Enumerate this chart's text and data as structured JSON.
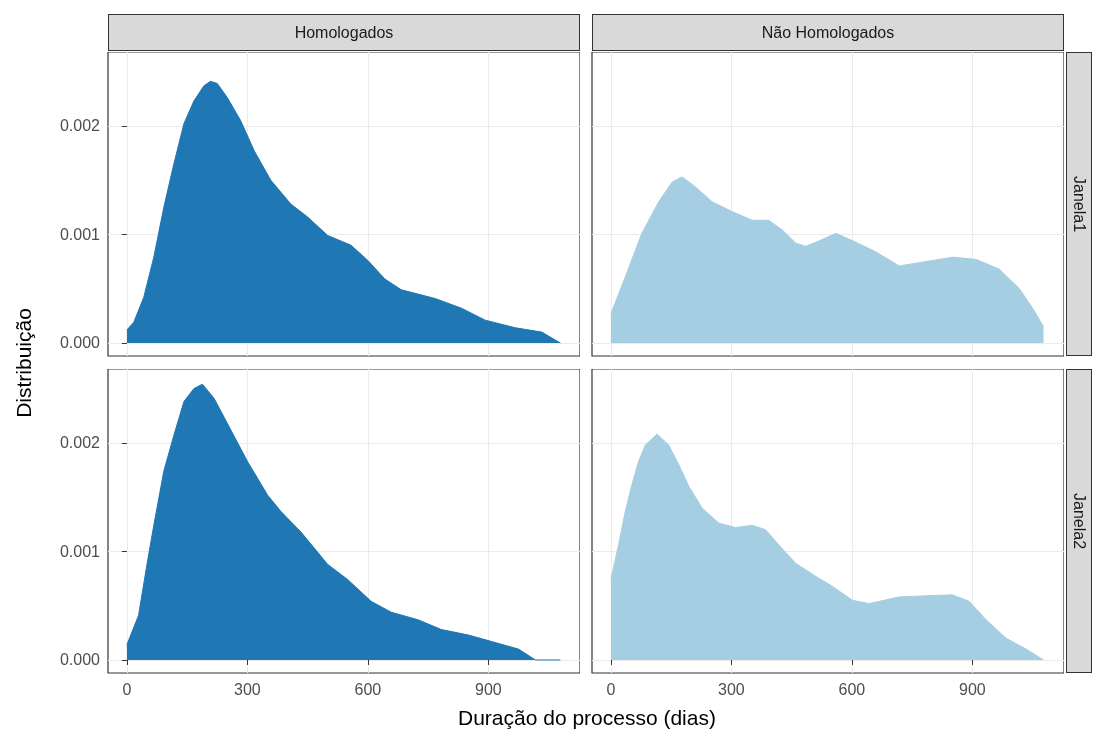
{
  "chart_data": [
    {
      "type": "area",
      "title": "Homologados",
      "ylabel": "Distribuição",
      "xlim": [
        -47,
        1128
      ],
      "xticks": [
        0,
        300,
        600,
        900
      ],
      "ylim": [
        -0.00012,
        0.00268
      ],
      "yticks": [
        {
          "value": 0,
          "label": "0.000"
        },
        {
          "value": 0.001,
          "label": "0.001"
        },
        {
          "value": 0.002,
          "label": "0.002"
        }
      ],
      "grid": true,
      "tick_labels": "y",
      "series": [
        {
          "color": "#1f77b4",
          "x": [
            0,
            17,
            42,
            67,
            92,
            117,
            142,
            167,
            192,
            208,
            225,
            250,
            283,
            317,
            358,
            408,
            450,
            500,
            558,
            600,
            642,
            683,
            767,
            833,
            892,
            967,
            1033,
            1079
          ],
          "values": [
            0.00012,
            0.00019,
            0.00042,
            0.00079,
            0.00125,
            0.00165,
            0.00202,
            0.00223,
            0.00237,
            0.00241,
            0.00239,
            0.00226,
            0.00205,
            0.00177,
            0.0015,
            0.00128,
            0.00116,
            0.00099,
            0.0009,
            0.00076,
            0.00059,
            0.00049,
            0.00041,
            0.00032,
            0.00021,
            0.00014,
            0.0001,
            0.0
          ]
        }
      ]
    },
    {
      "type": "area",
      "title": "Não Homologados",
      "y2label": "Janela1",
      "xlim": [
        -47,
        1128
      ],
      "xticks": [
        0,
        300,
        600,
        900
      ],
      "ylim": [
        -0.00012,
        0.00268
      ],
      "yticks": [
        0,
        0.001,
        0.002
      ],
      "grid": true,
      "tick_labels": false,
      "series": [
        {
          "color": "#a6cee3",
          "x": [
            0,
            36,
            77,
            119,
            152,
            177,
            210,
            252,
            302,
            352,
            393,
            427,
            460,
            485,
            518,
            560,
            609,
            659,
            718,
            801,
            851,
            909,
            967,
            1017,
            1050,
            1077
          ],
          "values": [
            0.00027,
            0.00061,
            0.00101,
            0.0013,
            0.00148,
            0.00153,
            0.00144,
            0.0013,
            0.00121,
            0.00113,
            0.00113,
            0.00104,
            0.00092,
            0.00089,
            0.00094,
            0.00101,
            0.00093,
            0.00084,
            0.00071,
            0.00076,
            0.00079,
            0.00077,
            0.00068,
            0.0005,
            0.00032,
            0.00015
          ]
        }
      ]
    },
    {
      "type": "area",
      "xlabel": "Duração do processo (dias)",
      "xlim": [
        -47,
        1128
      ],
      "xticks": [
        0,
        300,
        600,
        900
      ],
      "ylim": [
        -0.00012,
        0.00268
      ],
      "yticks": [
        {
          "value": 0,
          "label": "0.000"
        },
        {
          "value": 0.001,
          "label": "0.001"
        },
        {
          "value": 0.002,
          "label": "0.002"
        }
      ],
      "grid": true,
      "series": [
        {
          "color": "#1f77b4",
          "x": [
            0,
            29,
            50,
            67,
            92,
            117,
            142,
            167,
            188,
            217,
            250,
            300,
            350,
            383,
            433,
            500,
            550,
            608,
            658,
            725,
            783,
            850,
            908,
            975,
            1017,
            1079
          ],
          "values": [
            0.00014,
            0.00041,
            0.00088,
            0.00124,
            0.00174,
            0.00207,
            0.00238,
            0.0025,
            0.00254,
            0.00241,
            0.00218,
            0.00183,
            0.00152,
            0.00137,
            0.00118,
            0.00088,
            0.00074,
            0.00054,
            0.00044,
            0.00037,
            0.00028,
            0.00023,
            0.00017,
            0.0001,
            0.0,
            0.0
          ]
        }
      ]
    },
    {
      "type": "area",
      "y2label": "Janela2",
      "xlim": [
        -47,
        1128
      ],
      "xticks": [
        0,
        300,
        600,
        900
      ],
      "ylim": [
        -0.00012,
        0.00268
      ],
      "yticks": [
        0,
        0.001,
        0.002
      ],
      "grid": true,
      "tick_labels": "x",
      "series": [
        {
          "color": "#a6cee3",
          "x": [
            0,
            19,
            36,
            52,
            69,
            86,
            115,
            144,
            169,
            194,
            227,
            269,
            310,
            352,
            385,
            418,
            460,
            510,
            551,
            601,
            643,
            717,
            776,
            850,
            892,
            934,
            984,
            1034,
            1077
          ],
          "values": [
            0.00074,
            0.00106,
            0.00137,
            0.00161,
            0.00183,
            0.00198,
            0.00208,
            0.00198,
            0.0018,
            0.0016,
            0.0014,
            0.00126,
            0.00122,
            0.00124,
            0.0012,
            0.00106,
            0.00089,
            0.00077,
            0.00068,
            0.00055,
            0.00052,
            0.00058,
            0.00059,
            0.0006,
            0.00054,
            0.00037,
            0.0002,
            0.0001,
            0.0
          ]
        }
      ]
    }
  ]
}
